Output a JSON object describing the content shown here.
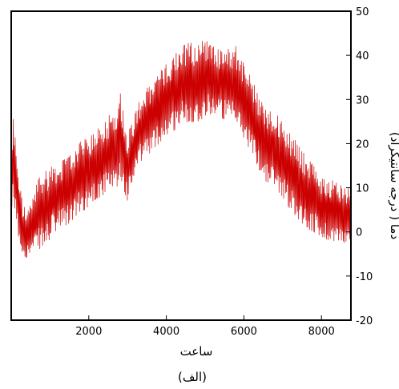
{
  "chart_data": {
    "type": "line",
    "xlabel": "ساعت",
    "ylabel": "دما ( درجه سانتیگراد)",
    "caption": "(الف)",
    "xlim": [
      0,
      8760
    ],
    "ylim": [
      -20,
      50
    ],
    "xticks": [
      2000,
      4000,
      6000,
      8000
    ],
    "yticks": [
      -20,
      -10,
      0,
      10,
      20,
      30,
      40,
      50
    ],
    "grid": false,
    "legend": "none",
    "series": [
      {
        "color": "#cc0000",
        "envelope_x": [
          0,
          50,
          100,
          200,
          300,
          400,
          500,
          700,
          900,
          1100,
          1300,
          1500,
          1700,
          1900,
          2100,
          2300,
          2500,
          2700,
          2800,
          3000,
          3200,
          3400,
          3600,
          3800,
          4000,
          4200,
          4400,
          4600,
          4800,
          5000,
          5200,
          5400,
          5600,
          5800,
          6000,
          6200,
          6400,
          6600,
          6800,
          7000,
          7200,
          7400,
          7600,
          7800,
          8000,
          8200,
          8400,
          8600,
          8760
        ],
        "upper": [
          10,
          26,
          22,
          12,
          6,
          5,
          6,
          12,
          14,
          15,
          16,
          17,
          20,
          21,
          22,
          24,
          26,
          29,
          32,
          22,
          27,
          32,
          33,
          36,
          38,
          40,
          42,
          43,
          42,
          44,
          42,
          41,
          42,
          42,
          38,
          35,
          30,
          28,
          27,
          25,
          22,
          20,
          17,
          15,
          12,
          12,
          11,
          10,
          10
        ],
        "lower": [
          -2,
          8,
          4,
          -2,
          -5,
          -6,
          -5,
          -4,
          -3,
          0,
          1,
          2,
          4,
          5,
          7,
          8,
          9,
          8,
          12,
          7,
          13,
          17,
          18,
          20,
          22,
          23,
          25,
          25,
          25,
          26,
          27,
          26,
          25,
          24,
          21,
          18,
          14,
          11,
          10,
          8,
          5,
          3,
          1,
          0,
          -1,
          -2,
          -2,
          -3,
          -3
        ]
      }
    ]
  }
}
